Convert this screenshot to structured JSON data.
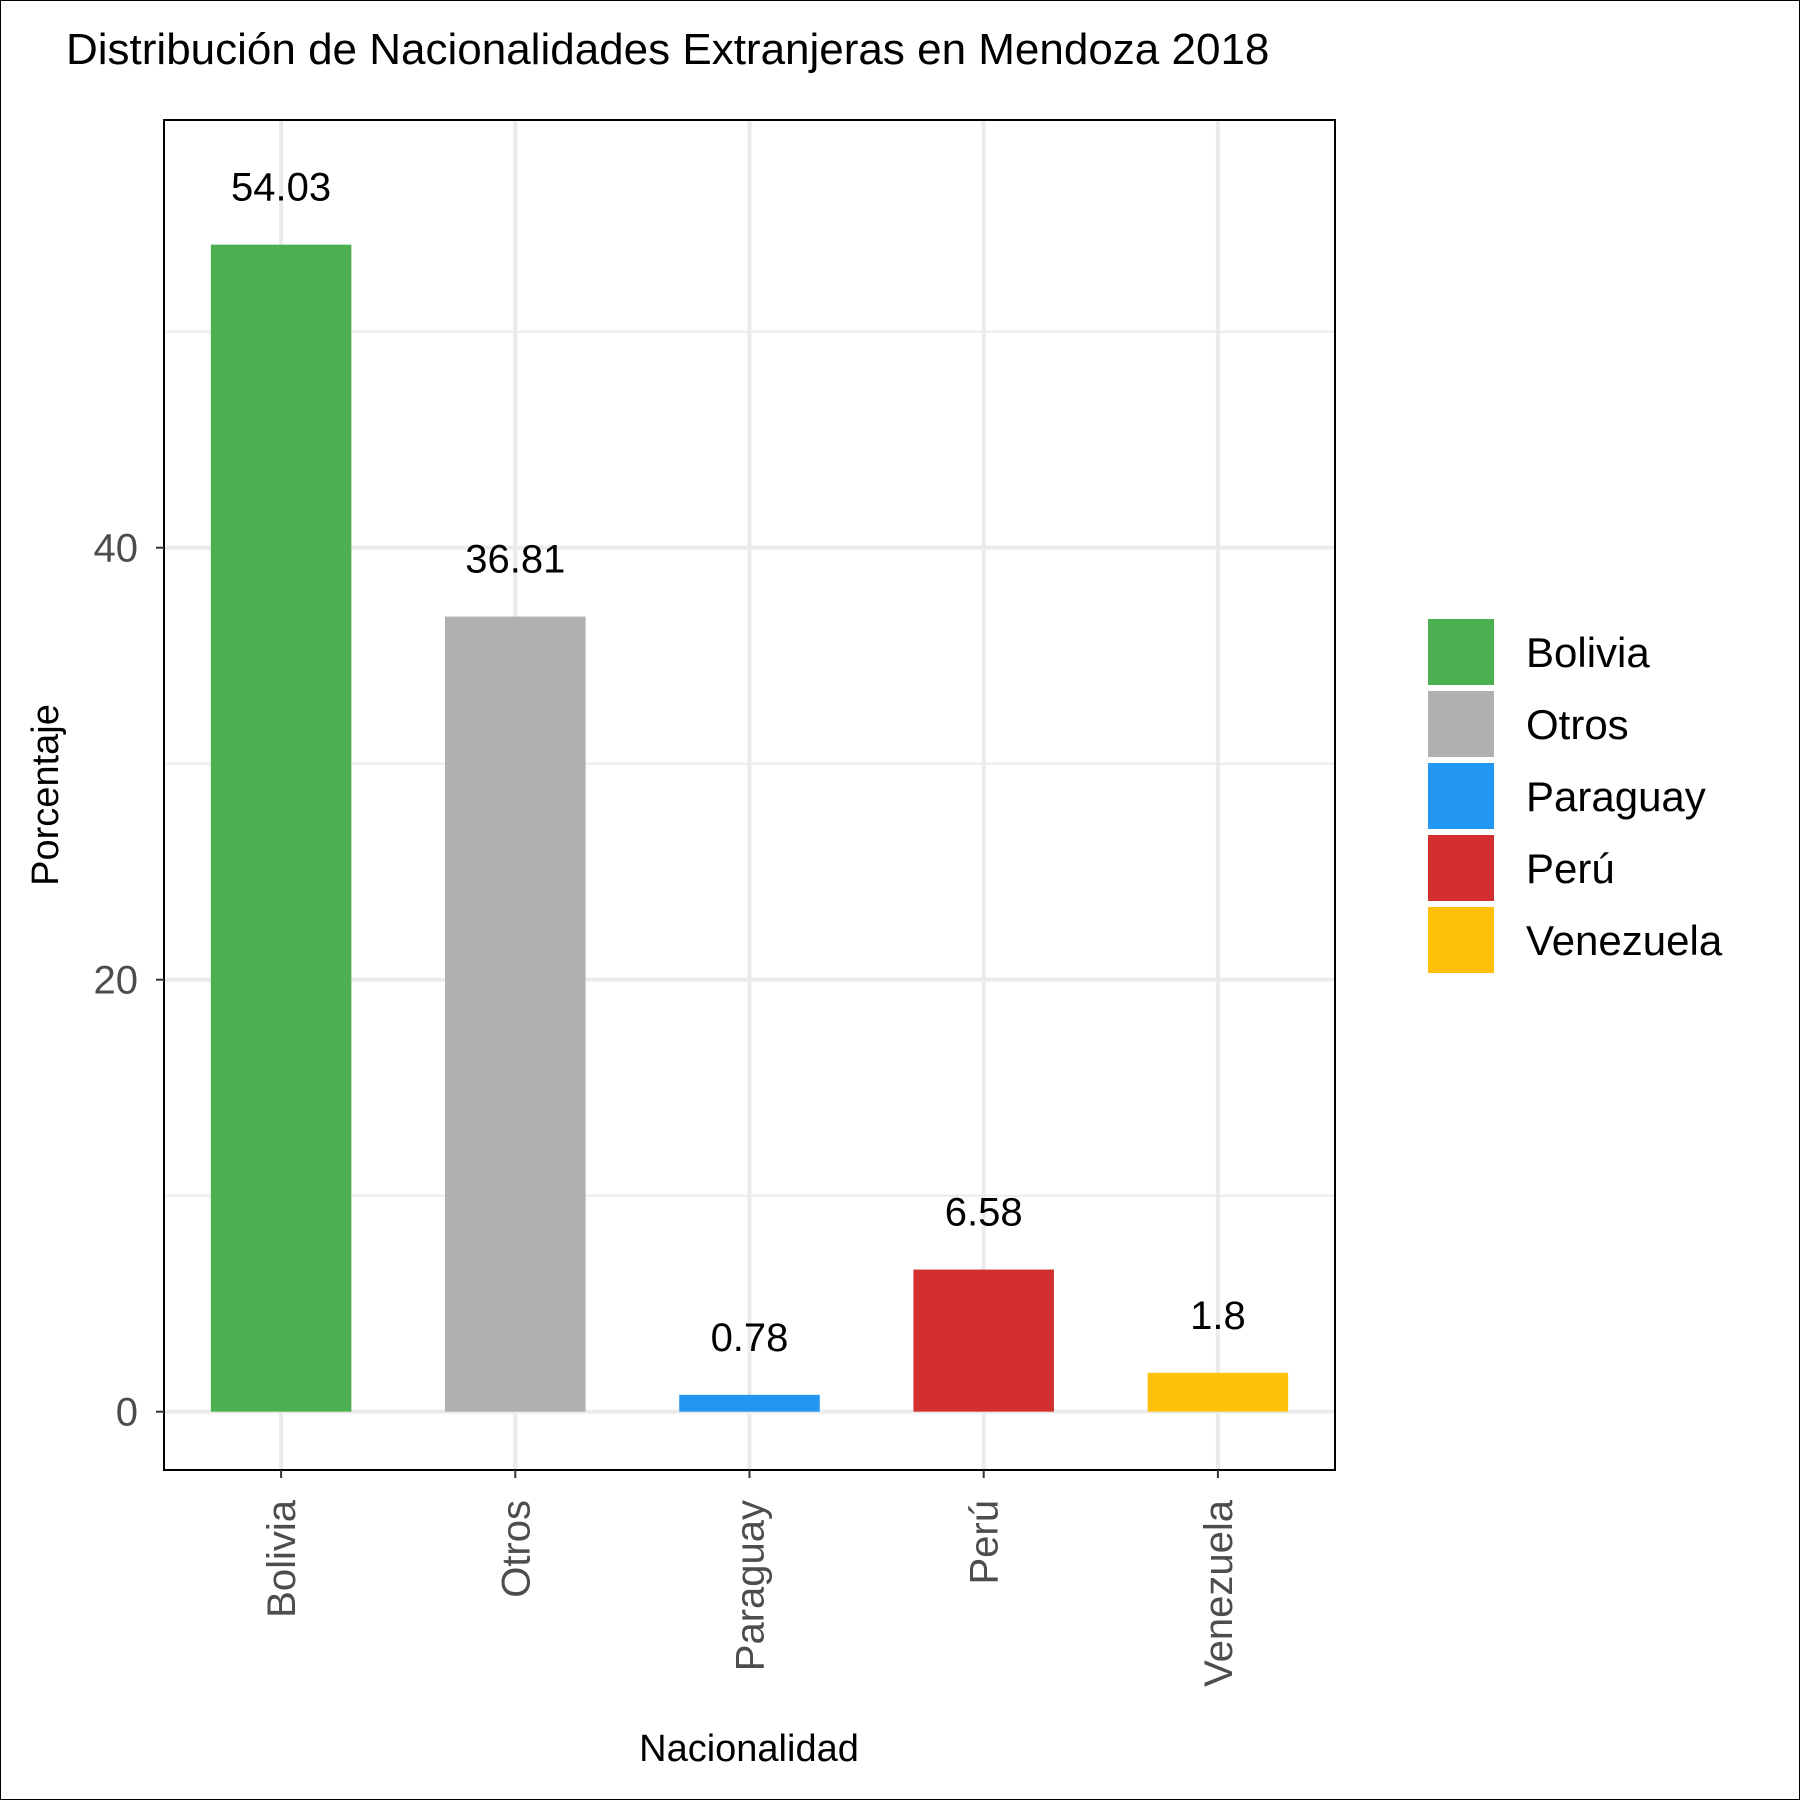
{
  "chart_data": {
    "type": "bar",
    "title": "Distribución de Nacionalidades Extranjeras en Mendoza 2018",
    "xlabel": "Nacionalidad",
    "ylabel": "Porcentaje",
    "categories": [
      "Bolivia",
      "Otros",
      "Paraguay",
      "Perú",
      "Venezuela"
    ],
    "values": [
      54.03,
      36.81,
      0.78,
      6.58,
      1.8
    ],
    "value_labels": [
      "54.03",
      "36.81",
      "0.78",
      "6.58",
      "1.8"
    ],
    "colors": [
      "#4CAF50",
      "#B0B0B0",
      "#2196F3",
      "#D32F2F",
      "#FFC107"
    ],
    "ylim": [
      -2.7,
      59.8
    ],
    "yticks": [
      0,
      20,
      40
    ],
    "ytick_labels": [
      "0",
      "20",
      "40"
    ],
    "grid": true,
    "legend": {
      "position": "right",
      "entries": [
        "Bolivia",
        "Otros",
        "Paraguay",
        "Perú",
        "Venezuela"
      ]
    }
  }
}
